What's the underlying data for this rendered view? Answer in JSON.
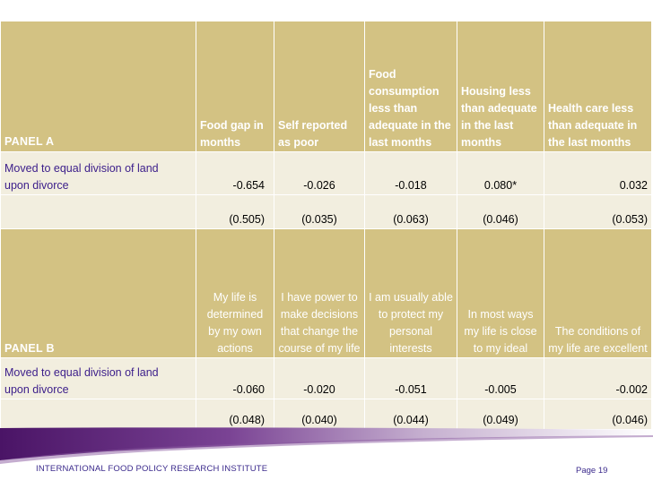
{
  "panel_a": {
    "label": "PANEL A",
    "headers": [
      "Food gap in months",
      "Self reported as poor",
      "Food consumption less than adequate in the last months",
      "Housing less than adequate in the last months",
      "Health care less than adequate in the last months"
    ],
    "row_label_line1": "Moved  to equal division of land",
    "row_label_line2": "upon divorce",
    "coefficients": [
      "-0.654",
      "-0.026",
      "-0.018",
      "0.080*",
      "0.032"
    ],
    "std_errors": [
      "(0.505)",
      "(0.035)",
      "(0.063)",
      "(0.046)",
      "(0.053)"
    ]
  },
  "panel_b": {
    "label": "PANEL B",
    "headers": [
      "My life is determined by my own actions",
      "I have power to make decisions that change the course of my life",
      "I am usually able to protect my personal interests",
      "In most ways my life is close to my ideal",
      "The conditions of my life are excellent"
    ],
    "row_label_line1": "Moved  to equal division of land",
    "row_label_line2": "upon divorce",
    "coefficients": [
      "-0.060",
      "-0.020",
      "-0.051",
      "-0.005",
      "-0.002"
    ],
    "std_errors": [
      "(0.048)",
      "(0.040)",
      "(0.044)",
      "(0.049)",
      "(0.046)"
    ]
  },
  "footer": {
    "institute": "INTERNATIONAL FOOD POLICY RESEARCH INSTITUTE",
    "page": "Page 19"
  }
}
